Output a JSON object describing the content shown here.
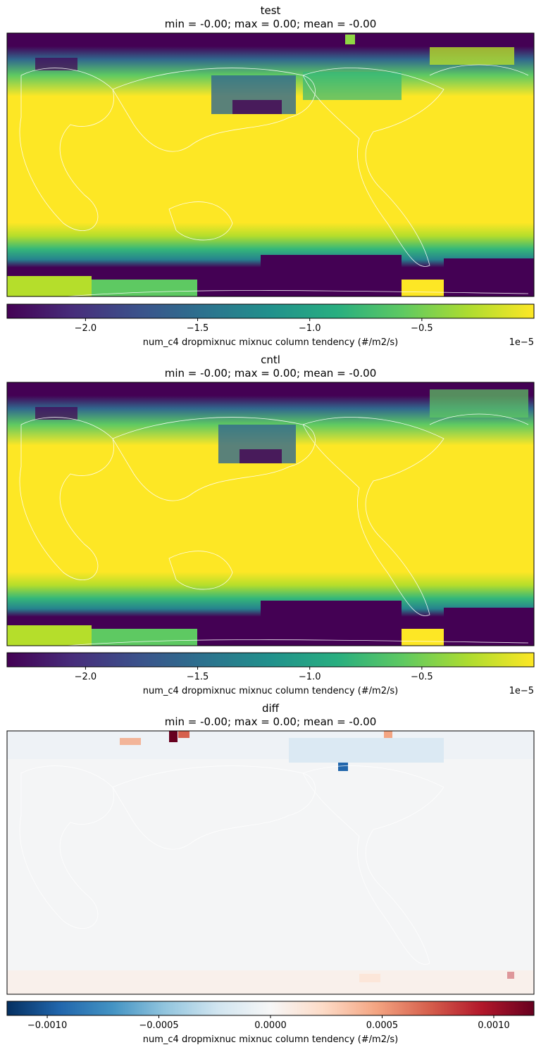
{
  "chart_data": [
    {
      "type": "heatmap",
      "title": "test",
      "subtitle": "min = -0.00; max = 0.00; mean = -0.00",
      "colormap": "viridis",
      "colorbar": {
        "label": "num_c4 dropmixnuc mixnuc column tendency (#/m2/s)",
        "range": [
          -2.35e-05,
          0
        ],
        "ticks": [
          "−2.0",
          "−1.5",
          "−1.0",
          "−0.5"
        ],
        "tick_values": [
          -2.0,
          -1.5,
          -1.0,
          -0.5
        ],
        "scale_label": "1e−5"
      }
    },
    {
      "type": "heatmap",
      "title": "cntl",
      "subtitle": "min = -0.00; max = 0.00; mean = -0.00",
      "colormap": "viridis",
      "colorbar": {
        "label": "num_c4 dropmixnuc mixnuc column tendency (#/m2/s)",
        "range": [
          -2.35e-05,
          0
        ],
        "ticks": [
          "−2.0",
          "−1.5",
          "−1.0",
          "−0.5"
        ],
        "tick_values": [
          -2.0,
          -1.5,
          -1.0,
          -0.5
        ],
        "scale_label": "1e−5"
      }
    },
    {
      "type": "heatmap",
      "title": "diff",
      "subtitle": "min = -0.00; max = 0.00; mean = -0.00",
      "colormap": "RdBu_r",
      "colorbar": {
        "label": "num_c4 dropmixnuc mixnuc column tendency (#/m2/s)",
        "range": [
          -0.00118,
          0.00118
        ],
        "ticks": [
          "−0.0010",
          "−0.0005",
          "0.0000",
          "0.0005",
          "0.0010"
        ],
        "tick_values": [
          -0.001,
          -0.0005,
          0,
          0.0005,
          0.001
        ],
        "scale_label": ""
      }
    }
  ],
  "colors": {
    "viridis_dark": "#440154",
    "viridis_mid": "#21918c",
    "viridis_bright": "#fde725",
    "rdbu_neg": "#053061",
    "rdbu_zero": "#f7f7f7",
    "rdbu_pos": "#67001f"
  }
}
